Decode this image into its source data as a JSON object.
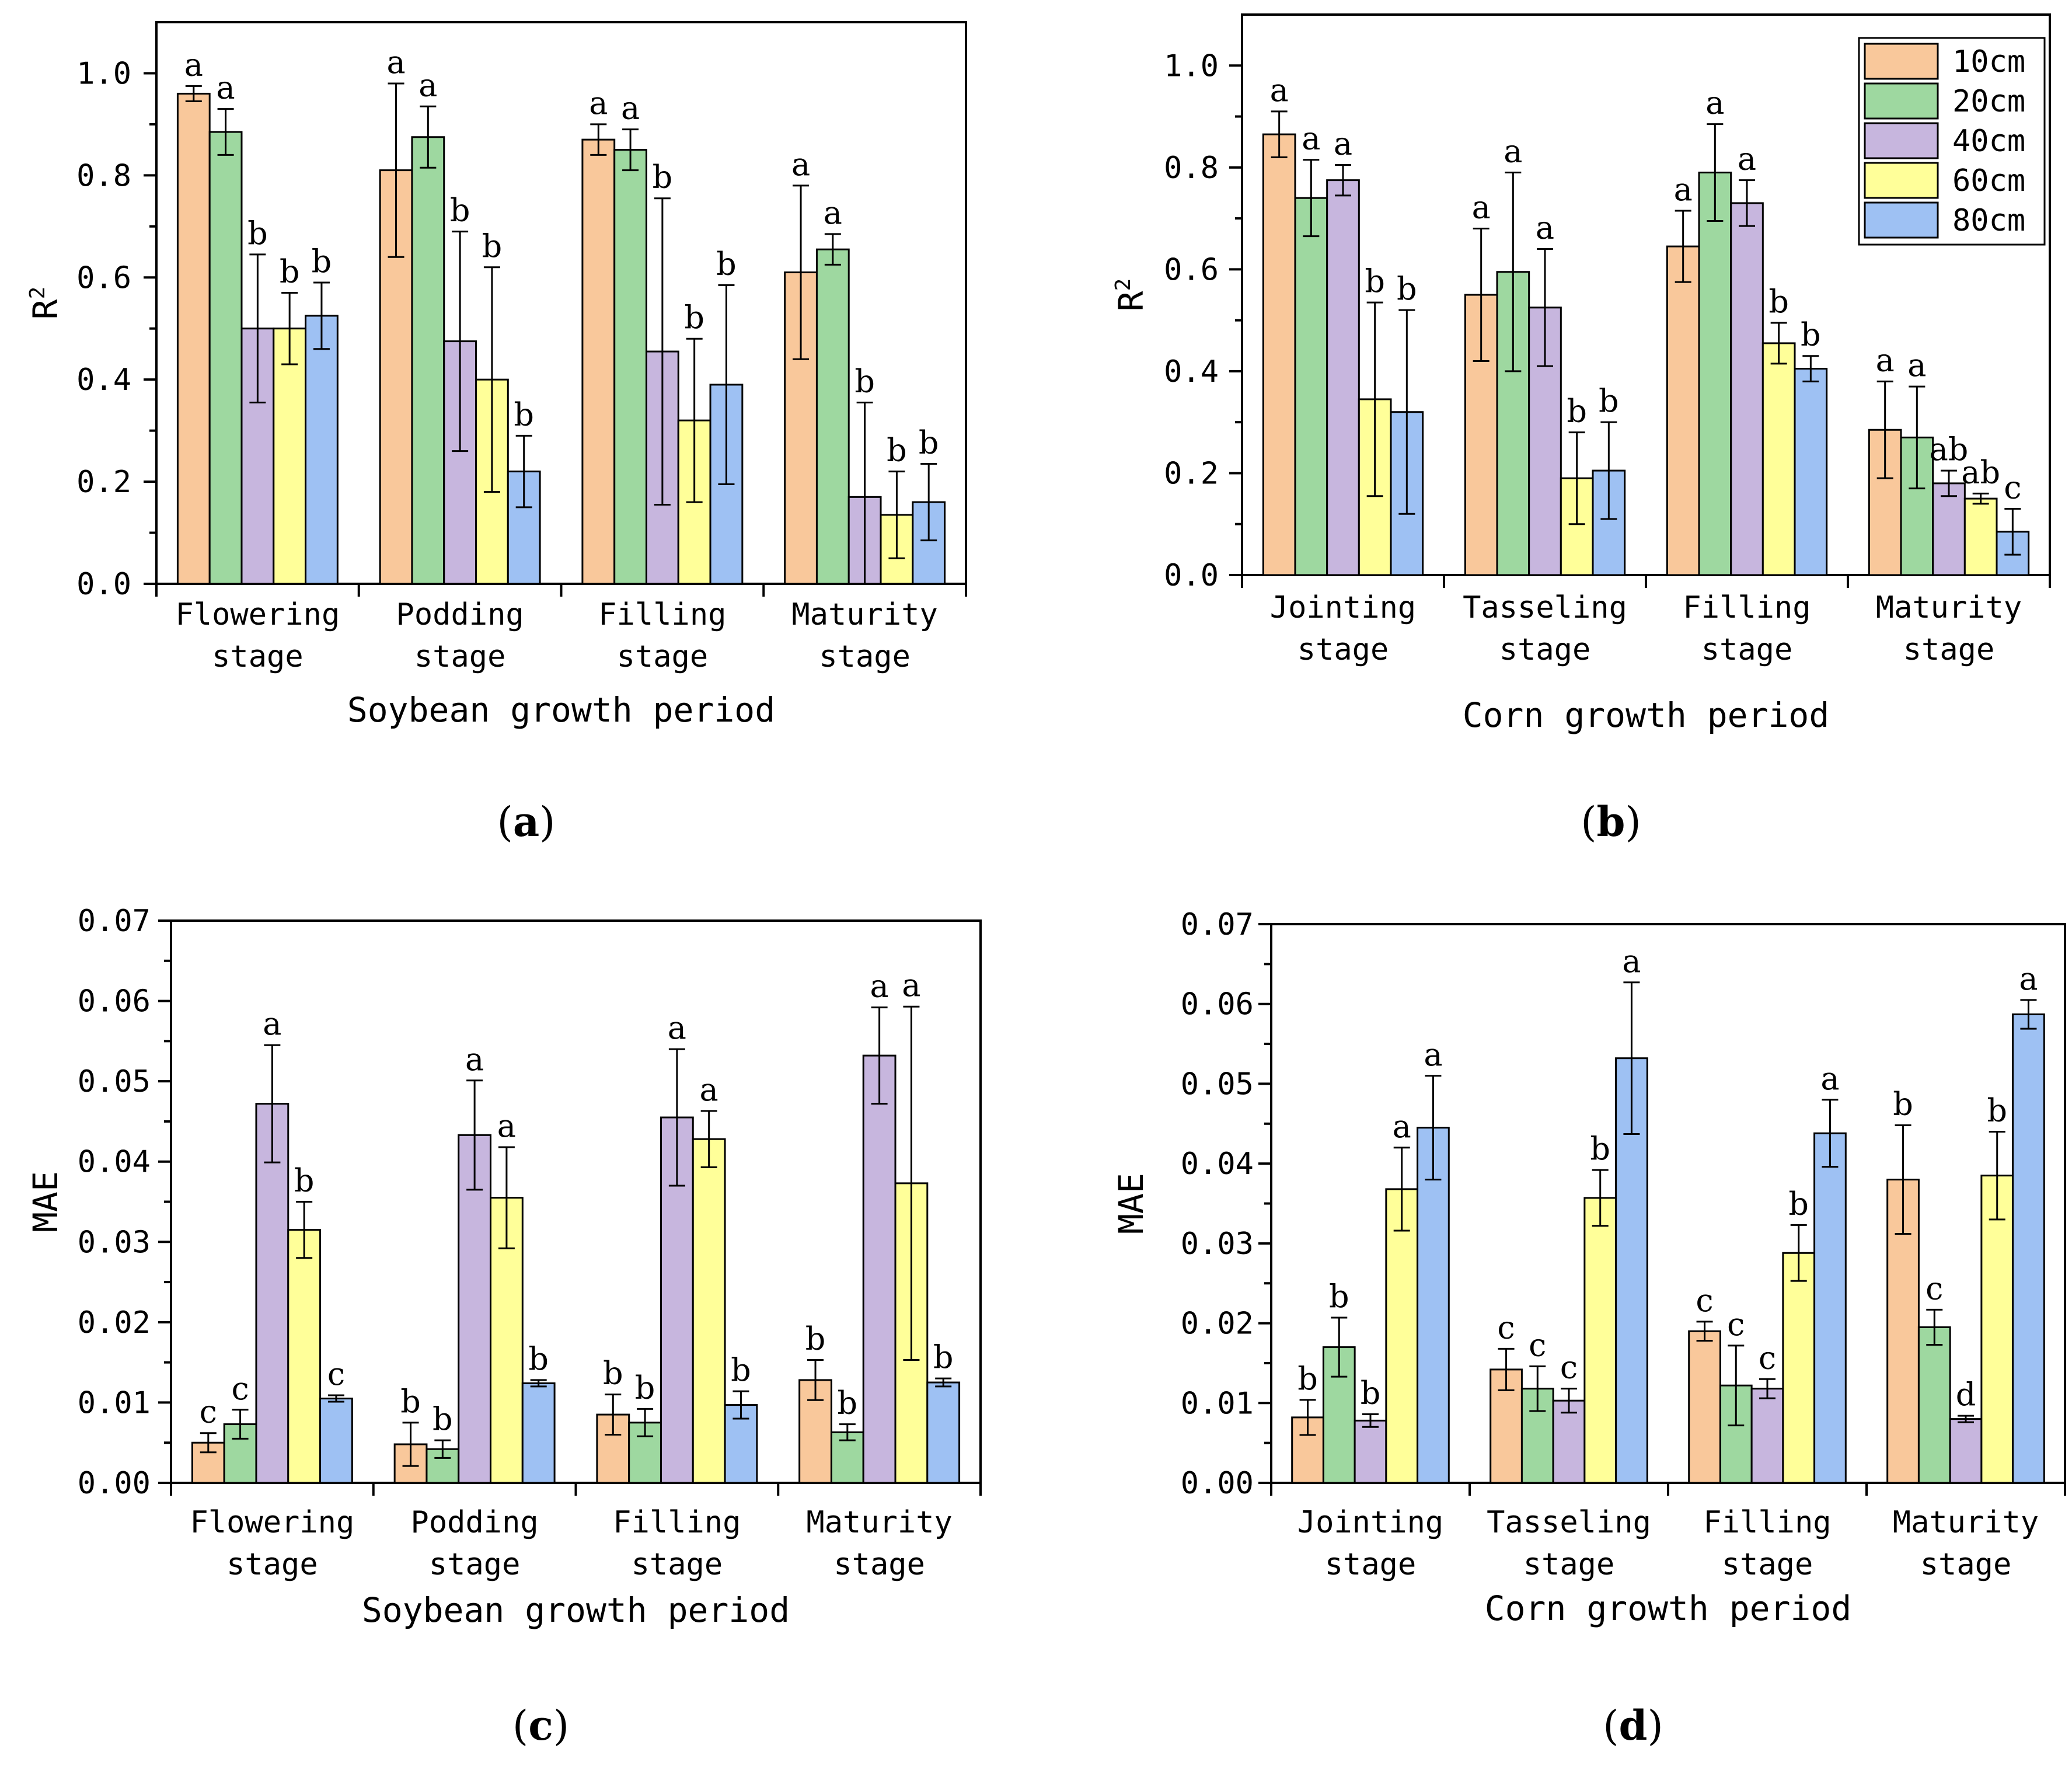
{
  "colors": {
    "10cm": "#F9C89B",
    "20cm": "#9ED8A0",
    "40cm": "#C7B6DE",
    "60cm": "#FFFF99",
    "80cm": "#9EC1F3"
  },
  "legend": [
    "10cm",
    "20cm",
    "40cm",
    "60cm",
    "80cm"
  ],
  "chart_data": [
    {
      "id": "a",
      "type": "bar",
      "panel_label": "a",
      "xlabel": "Soybean growth period",
      "ylabel": "R2",
      "ylim": [
        0,
        1.1
      ],
      "yticks": [
        0.0,
        0.2,
        0.4,
        0.6,
        0.8,
        1.0
      ],
      "ytick_labels": [
        "0.0",
        "0.2",
        "0.4",
        "0.6",
        "0.8",
        "1.0"
      ],
      "categories": [
        [
          "Flowering",
          "stage"
        ],
        [
          "Podding",
          "stage"
        ],
        [
          "Filling",
          "stage"
        ],
        [
          "Maturity",
          "stage"
        ]
      ],
      "series": [
        {
          "name": "10cm",
          "values": [
            0.96,
            0.81,
            0.87,
            0.61
          ],
          "errors": [
            0.015,
            0.17,
            0.03,
            0.17
          ],
          "letters": [
            "a",
            "a",
            "a",
            "a"
          ]
        },
        {
          "name": "20cm",
          "values": [
            0.885,
            0.875,
            0.85,
            0.655
          ],
          "errors": [
            0.045,
            0.06,
            0.04,
            0.03
          ],
          "letters": [
            "a",
            "a",
            "a",
            "a"
          ]
        },
        {
          "name": "40cm",
          "values": [
            0.5,
            0.475,
            0.455,
            0.17
          ],
          "errors": [
            0.145,
            0.215,
            0.3,
            0.185
          ],
          "letters": [
            "b",
            "b",
            "b",
            "b"
          ]
        },
        {
          "name": "60cm",
          "values": [
            0.5,
            0.4,
            0.32,
            0.135
          ],
          "errors": [
            0.07,
            0.22,
            0.16,
            0.085
          ],
          "letters": [
            "b",
            "b",
            "b",
            "b"
          ]
        },
        {
          "name": "80cm",
          "values": [
            0.525,
            0.22,
            0.39,
            0.16
          ],
          "errors": [
            0.065,
            0.07,
            0.195,
            0.075
          ],
          "letters": [
            "b",
            "b",
            "b",
            "b"
          ]
        }
      ]
    },
    {
      "id": "b",
      "type": "bar",
      "panel_label": "b",
      "xlabel": "Corn growth period",
      "ylabel": "R2",
      "ylim": [
        0,
        1.1
      ],
      "yticks": [
        0.0,
        0.2,
        0.4,
        0.6,
        0.8,
        1.0
      ],
      "ytick_labels": [
        "0.0",
        "0.2",
        "0.4",
        "0.6",
        "0.8",
        "1.0"
      ],
      "categories": [
        [
          "Jointing",
          "stage"
        ],
        [
          "Tasseling",
          "stage"
        ],
        [
          "Filling",
          "stage"
        ],
        [
          "Maturity",
          "stage"
        ]
      ],
      "legend_shown": true,
      "series": [
        {
          "name": "10cm",
          "values": [
            0.865,
            0.55,
            0.645,
            0.285
          ],
          "errors": [
            0.045,
            0.13,
            0.07,
            0.095
          ],
          "letters": [
            "a",
            "a",
            "a",
            "a"
          ]
        },
        {
          "name": "20cm",
          "values": [
            0.74,
            0.595,
            0.79,
            0.27
          ],
          "errors": [
            0.075,
            0.195,
            0.095,
            0.1
          ],
          "letters": [
            "a",
            "a",
            "a",
            "a"
          ]
        },
        {
          "name": "40cm",
          "values": [
            0.775,
            0.525,
            0.73,
            0.18
          ],
          "errors": [
            0.03,
            0.115,
            0.045,
            0.025
          ],
          "letters": [
            "a",
            "a",
            "a",
            "ab"
          ]
        },
        {
          "name": "60cm",
          "values": [
            0.345,
            0.19,
            0.455,
            0.15
          ],
          "errors": [
            0.19,
            0.09,
            0.04,
            0.01
          ],
          "letters": [
            "b",
            "b",
            "b",
            "ab"
          ]
        },
        {
          "name": "80cm",
          "values": [
            0.32,
            0.205,
            0.405,
            0.085
          ],
          "errors": [
            0.2,
            0.095,
            0.025,
            0.045
          ],
          "letters": [
            "b",
            "b",
            "b",
            "c"
          ]
        }
      ]
    },
    {
      "id": "c",
      "type": "bar",
      "panel_label": "c",
      "xlabel": "Soybean growth period",
      "ylabel": "MAE",
      "ylim": [
        0,
        0.07
      ],
      "yticks": [
        0.0,
        0.01,
        0.02,
        0.03,
        0.04,
        0.05,
        0.06,
        0.07
      ],
      "ytick_labels": [
        "0.00",
        "0.01",
        "0.02",
        "0.03",
        "0.04",
        "0.05",
        "0.06",
        "0.07"
      ],
      "categories": [
        [
          "Flowering",
          "stage"
        ],
        [
          "Podding",
          "stage"
        ],
        [
          "Filling",
          "stage"
        ],
        [
          "Maturity",
          "stage"
        ]
      ],
      "series": [
        {
          "name": "10cm",
          "values": [
            0.005,
            0.0048,
            0.0085,
            0.0128
          ],
          "errors": [
            0.0012,
            0.0027,
            0.0025,
            0.0025
          ],
          "letters": [
            "c",
            "b",
            "b",
            "b"
          ]
        },
        {
          "name": "20cm",
          "values": [
            0.0073,
            0.0042,
            0.0075,
            0.0063
          ],
          "errors": [
            0.0018,
            0.0011,
            0.0017,
            0.001
          ],
          "letters": [
            "c",
            "b",
            "b",
            "b"
          ]
        },
        {
          "name": "40cm",
          "values": [
            0.0472,
            0.0433,
            0.0455,
            0.0532
          ],
          "errors": [
            0.0073,
            0.0068,
            0.0085,
            0.006
          ],
          "letters": [
            "a",
            "a",
            "a",
            "a"
          ]
        },
        {
          "name": "60cm",
          "values": [
            0.0315,
            0.0355,
            0.0428,
            0.0373
          ],
          "errors": [
            0.0035,
            0.0063,
            0.0035,
            0.022
          ],
          "letters": [
            "b",
            "a",
            "a",
            "a"
          ]
        },
        {
          "name": "80cm",
          "values": [
            0.0105,
            0.0124,
            0.0097,
            0.0125
          ],
          "errors": [
            0.0004,
            0.0004,
            0.0017,
            0.0005
          ],
          "letters": [
            "c",
            "b",
            "b",
            "b"
          ]
        }
      ]
    },
    {
      "id": "d",
      "type": "bar",
      "panel_label": "d",
      "xlabel": "Corn growth period",
      "ylabel": "MAE",
      "ylim": [
        0,
        0.07
      ],
      "yticks": [
        0.0,
        0.01,
        0.02,
        0.03,
        0.04,
        0.05,
        0.06,
        0.07
      ],
      "ytick_labels": [
        "0.00",
        "0.01",
        "0.02",
        "0.03",
        "0.04",
        "0.05",
        "0.06",
        "0.07"
      ],
      "categories": [
        [
          "Jointing",
          "stage"
        ],
        [
          "Tasseling",
          "stage"
        ],
        [
          "Filling",
          "stage"
        ],
        [
          "Maturity",
          "stage"
        ]
      ],
      "series": [
        {
          "name": "10cm",
          "values": [
            0.0082,
            0.0142,
            0.019,
            0.038
          ],
          "errors": [
            0.0022,
            0.0026,
            0.0012,
            0.0068
          ],
          "letters": [
            "b",
            "c",
            "c",
            "b"
          ]
        },
        {
          "name": "20cm",
          "values": [
            0.017,
            0.0118,
            0.0122,
            0.0195
          ],
          "errors": [
            0.0037,
            0.0028,
            0.005,
            0.0022
          ],
          "letters": [
            "b",
            "c",
            "c",
            "c"
          ]
        },
        {
          "name": "40cm",
          "values": [
            0.0078,
            0.0103,
            0.0118,
            0.008
          ],
          "errors": [
            0.0008,
            0.0015,
            0.0012,
            0.0004
          ],
          "letters": [
            "b",
            "c",
            "c",
            "d"
          ]
        },
        {
          "name": "60cm",
          "values": [
            0.0368,
            0.0357,
            0.0288,
            0.0385
          ],
          "errors": [
            0.0052,
            0.0035,
            0.0035,
            0.0055
          ],
          "letters": [
            "a",
            "b",
            "b",
            "b"
          ]
        },
        {
          "name": "80cm",
          "values": [
            0.0445,
            0.0532,
            0.0438,
            0.0587
          ],
          "errors": [
            0.0065,
            0.0095,
            0.0042,
            0.0018
          ],
          "letters": [
            "a",
            "a",
            "a",
            "a"
          ]
        }
      ]
    }
  ]
}
